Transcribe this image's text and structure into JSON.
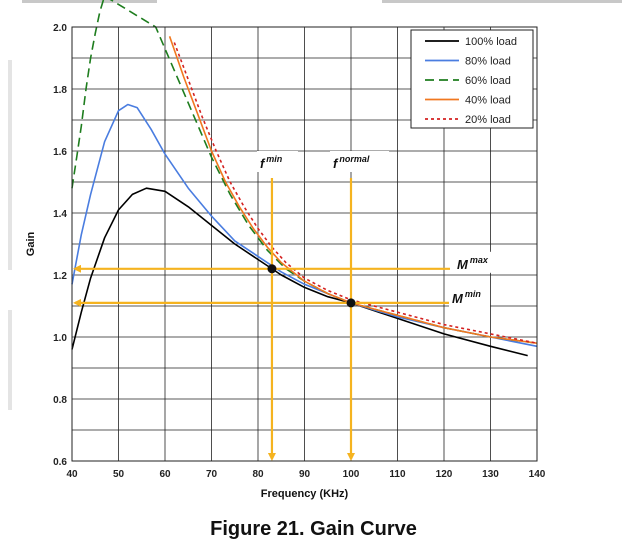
{
  "figure": {
    "caption": "Figure 21. Gain Curve"
  },
  "chart_data": {
    "type": "line",
    "xlabel": "Frequency (KHz)",
    "ylabel": "Gain",
    "xlim": [
      40,
      140
    ],
    "ylim": [
      0.6,
      2.0
    ],
    "xticks": [
      40,
      50,
      60,
      70,
      80,
      90,
      100,
      110,
      120,
      130,
      140
    ],
    "yticks": [
      0.6,
      0.8,
      1.0,
      1.2,
      1.4,
      1.6,
      1.8,
      2.0
    ],
    "ytick_labels": [
      "0.6",
      "0.8",
      "1.0",
      "1.2",
      "1.4",
      "1.6",
      "1.8",
      "2.0"
    ],
    "grid": true,
    "legend_position": "top-right",
    "series": [
      {
        "name": "100% load",
        "color": "#000000",
        "dash": "solid",
        "x": [
          40,
          42,
          44,
          47,
          50,
          53,
          56,
          60,
          65,
          70,
          75,
          80,
          85,
          90,
          95,
          100,
          110,
          120,
          130,
          138
        ],
        "y": [
          0.96,
          1.08,
          1.19,
          1.32,
          1.41,
          1.46,
          1.48,
          1.47,
          1.42,
          1.36,
          1.3,
          1.25,
          1.2,
          1.16,
          1.13,
          1.11,
          1.06,
          1.01,
          0.97,
          0.94
        ]
      },
      {
        "name": "80% load",
        "color": "#4a7de0",
        "dash": "solid",
        "x": [
          40,
          42,
          44,
          47,
          50,
          52,
          54,
          57,
          60,
          65,
          70,
          75,
          80,
          85,
          90,
          95,
          100,
          110,
          120,
          130,
          140
        ],
        "y": [
          1.17,
          1.33,
          1.46,
          1.63,
          1.73,
          1.75,
          1.74,
          1.67,
          1.59,
          1.48,
          1.39,
          1.31,
          1.26,
          1.21,
          1.17,
          1.14,
          1.11,
          1.065,
          1.03,
          1.0,
          0.97
        ]
      },
      {
        "name": "60% load",
        "color": "#1e7d1e",
        "dash": "dash",
        "x": [
          40,
          41,
          42,
          43,
          44,
          45,
          46,
          47,
          58,
          62,
          66,
          70,
          74,
          78,
          82,
          86,
          90,
          95,
          100,
          110,
          120,
          130,
          140
        ],
        "y": [
          1.48,
          1.58,
          1.68,
          1.8,
          1.9,
          1.98,
          2.05,
          2.1,
          2.0,
          1.86,
          1.72,
          1.58,
          1.46,
          1.36,
          1.28,
          1.22,
          1.18,
          1.14,
          1.11,
          1.07,
          1.03,
          1.0,
          0.98
        ]
      },
      {
        "name": "40% load",
        "color": "#f07820",
        "dash": "solid",
        "x": [
          61,
          64,
          67,
          70,
          73,
          76,
          79,
          82,
          85,
          90,
          95,
          100,
          110,
          120,
          130,
          140
        ],
        "y": [
          1.97,
          1.84,
          1.72,
          1.6,
          1.5,
          1.42,
          1.35,
          1.29,
          1.24,
          1.18,
          1.14,
          1.11,
          1.07,
          1.03,
          1.0,
          0.98
        ]
      },
      {
        "name": "20% load",
        "color": "#d42020",
        "dash": "dot",
        "x": [
          62,
          65,
          68,
          71,
          74,
          77,
          80,
          83,
          86,
          90,
          95,
          100,
          110,
          120,
          130,
          140
        ],
        "y": [
          1.95,
          1.83,
          1.71,
          1.6,
          1.5,
          1.42,
          1.35,
          1.29,
          1.24,
          1.19,
          1.15,
          1.12,
          1.08,
          1.04,
          1.01,
          0.98
        ]
      }
    ],
    "annotations": [
      {
        "id": "fmin",
        "base": "f",
        "sup": "min",
        "x": 83
      },
      {
        "id": "fnormal",
        "base": "f",
        "sup": "normal",
        "x": 100
      },
      {
        "id": "mmax",
        "base": "M",
        "sup": "max",
        "y": 1.22
      },
      {
        "id": "mmin",
        "base": "M",
        "sup": "min",
        "y": 1.11
      }
    ],
    "markers": [
      {
        "x": 83,
        "y": 1.22
      },
      {
        "x": 100,
        "y": 1.11
      }
    ],
    "guide_color": "#f5b31f"
  }
}
